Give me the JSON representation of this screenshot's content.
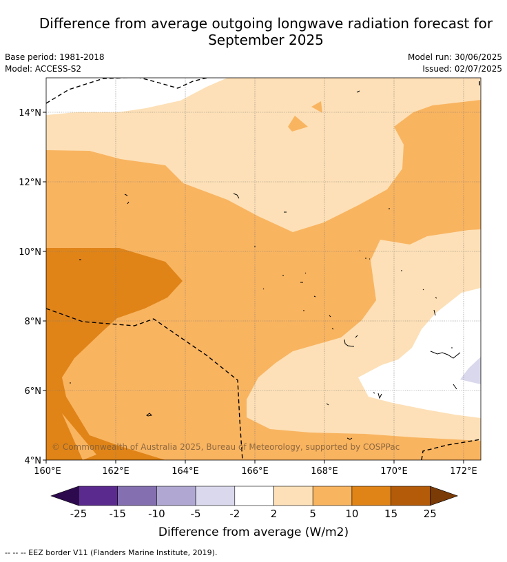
{
  "header": {
    "title_line1": "Difference from average outgoing longwave radiation forecast for",
    "title_line2": "September 2025",
    "base_period": "Base period: 1981-2018",
    "model": "Model: ACCESS-S2",
    "model_run": "Model run: 30/06/2025",
    "issued": "Issued: 02/07/2025"
  },
  "map": {
    "lat_labels": [
      "14°N",
      "12°N",
      "10°N",
      "8°N",
      "6°N",
      "4°N"
    ],
    "lon_labels": [
      "160°E",
      "162°E",
      "164°E",
      "166°E",
      "168°E",
      "170°E",
      "172°E"
    ],
    "copyright": "© Commonwealth of Australia 2025, Bureau of Meteorology, supported by COSPPac"
  },
  "colorbar": {
    "ticks": [
      "-25",
      "-15",
      "-10",
      "-5",
      "-2",
      "2",
      "5",
      "10",
      "15",
      "25"
    ],
    "label": "Difference from average (W/m2)",
    "colors": [
      "#2d0a4e",
      "#5b2a8e",
      "#8470b0",
      "#b0a8d2",
      "#d9d8ec",
      "#ffffff",
      "#fde0b7",
      "#f9b460",
      "#e08418",
      "#b45b0a",
      "#7a3b07"
    ]
  },
  "footer": {
    "eez_note": "--  --  -- EEZ border V11 (Flanders Marine Institute, 2019)."
  }
}
